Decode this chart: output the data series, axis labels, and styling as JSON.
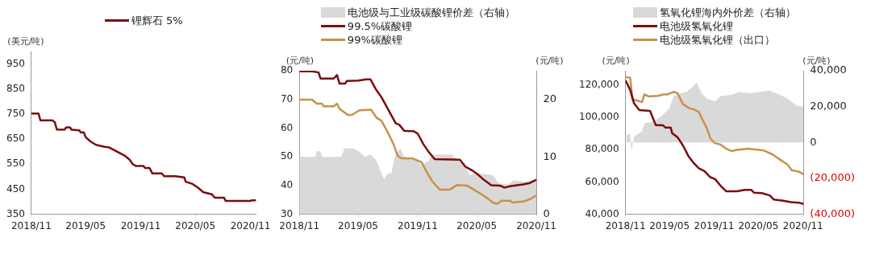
{
  "chart_data": [
    {
      "type": "line",
      "ylabel": "(美元/吨)",
      "legend": "top",
      "grid": false,
      "xlim": [
        "2018-11-01",
        "2020-11-20"
      ],
      "xticks": [
        {
          "value": "2018-11-01",
          "label": "2018/11"
        },
        {
          "value": "2019-05-01",
          "label": "2019/05"
        },
        {
          "value": "2019-11-01",
          "label": "2019/11"
        },
        {
          "value": "2020-05-01",
          "label": "2020/05"
        },
        {
          "value": "2020-11-01",
          "label": "2020/11"
        }
      ],
      "ylim": [
        350,
        1000
      ],
      "yticks": [
        350,
        450,
        550,
        650,
        750,
        850,
        950
      ],
      "series": [
        {
          "name": "锂辉石 5%",
          "color": "#7b0c0c",
          "x": [
            "2018-11-01",
            "2018-11-25",
            "2018-12-01",
            "2019-01-10",
            "2019-01-18",
            "2019-01-25",
            "2019-02-20",
            "2019-02-25",
            "2019-03-10",
            "2019-03-15",
            "2019-04-10",
            "2019-04-15",
            "2019-04-25",
            "2019-05-01",
            "2019-05-18",
            "2019-06-05",
            "2019-07-01",
            "2019-07-18",
            "2019-08-01",
            "2019-08-20",
            "2019-09-07",
            "2019-09-25",
            "2019-10-05",
            "2019-10-15",
            "2019-11-10",
            "2019-11-15",
            "2019-11-30",
            "2019-12-10",
            "2020-01-10",
            "2020-01-18",
            "2020-02-25",
            "2020-03-25",
            "2020-03-30",
            "2020-04-20",
            "2020-05-10",
            "2020-05-28",
            "2020-06-25",
            "2020-07-05",
            "2020-08-05",
            "2020-08-10",
            "2020-11-01",
            "2020-11-04",
            "2020-11-20"
          ],
          "values": [
            752,
            752,
            725,
            725,
            718,
            688,
            688,
            697,
            697,
            688,
            685,
            677,
            677,
            658,
            640,
            627,
            620,
            617,
            608,
            596,
            585,
            568,
            550,
            543,
            543,
            535,
            535,
            513,
            513,
            502,
            502,
            497,
            480,
            472,
            456,
            438,
            430,
            416,
            416,
            403,
            403,
            406,
            406
          ]
        }
      ]
    },
    {
      "type": "line",
      "ylabel": "(元/吨)",
      "y2label": "(元/吨)",
      "legend": "top",
      "grid": false,
      "xlim": [
        "2018-11-01",
        "2020-11-02"
      ],
      "xticks": [
        {
          "value": "2018-11-01",
          "label": "2018/11"
        },
        {
          "value": "2019-05-01",
          "label": "2019/05"
        },
        {
          "value": "2019-11-01",
          "label": "2019/11"
        },
        {
          "value": "2020-05-01",
          "label": "2020/05"
        },
        {
          "value": "2020-11-01",
          "label": "2020/11"
        }
      ],
      "ylim": [
        30,
        80
      ],
      "yticks": [
        30,
        40,
        50,
        60,
        70,
        80
      ],
      "y2lim": [
        0,
        25
      ],
      "y2ticks": [
        0,
        10,
        20
      ],
      "series": [
        {
          "name": "电池级与工业级碳酸锂价差（右轴）",
          "type": "area",
          "axis": "y2",
          "color": "#d9d9d9",
          "x": [
            "2018-11-01",
            "2018-12-20",
            "2018-12-25",
            "2019-01-05",
            "2019-01-10",
            "2019-03-10",
            "2019-03-20",
            "2019-04-15",
            "2019-05-05",
            "2019-05-22",
            "2019-06-08",
            "2019-06-25",
            "2019-07-12",
            "2019-07-20",
            "2019-07-30",
            "2019-08-12",
            "2019-08-22",
            "2019-09-08",
            "2019-09-20",
            "2019-10-25",
            "2019-11-12",
            "2019-12-05",
            "2019-12-14",
            "2020-02-14",
            "2020-03-05",
            "2020-03-22",
            "2020-04-10",
            "2020-04-28",
            "2020-05-24",
            "2020-06-20",
            "2020-07-08",
            "2020-08-05",
            "2020-08-22",
            "2020-09-26",
            "2020-10-18",
            "2020-11-01"
          ],
          "values": [
            10,
            10,
            11,
            11,
            10,
            10,
            11.5,
            11.5,
            10.9,
            10,
            10.4,
            9.5,
            7.2,
            6.1,
            7,
            7.2,
            10,
            11.5,
            10,
            9.7,
            8.6,
            9.3,
            10.4,
            10.4,
            9.3,
            8.6,
            6.8,
            7.2,
            7,
            6.8,
            5.4,
            5.2,
            5.9,
            5.7,
            5.9,
            5.7
          ]
        },
        {
          "name": "99.5%碳酸锂",
          "color": "#7b0c0c",
          "x": [
            "2018-11-01",
            "2018-12-10",
            "2018-12-30",
            "2019-01-05",
            "2019-02-15",
            "2019-02-25",
            "2019-03-05",
            "2019-03-22",
            "2019-03-27",
            "2019-05-01",
            "2019-05-27",
            "2019-06-08",
            "2019-06-25",
            "2019-07-12",
            "2019-07-30",
            "2019-08-25",
            "2019-09-05",
            "2019-09-20",
            "2019-10-20",
            "2019-11-01",
            "2019-11-18",
            "2019-12-05",
            "2019-12-23",
            "2020-03-10",
            "2020-03-28",
            "2020-04-15",
            "2020-05-02",
            "2020-05-20",
            "2020-06-15",
            "2020-07-12",
            "2020-07-25",
            "2020-08-15",
            "2020-09-20",
            "2020-10-12",
            "2020-11-01"
          ],
          "values": [
            79.8,
            79.8,
            79.4,
            77.3,
            77.3,
            78.5,
            75.5,
            75.5,
            76.4,
            76.6,
            77,
            77,
            73.5,
            70.8,
            67.1,
            61.7,
            61.2,
            59.1,
            58.9,
            58.1,
            54.5,
            51.7,
            49.2,
            49,
            46.5,
            45.4,
            44.1,
            42.3,
            40.1,
            40,
            39.3,
            39.8,
            40.4,
            40.9,
            42
          ]
        },
        {
          "name": "99%碳酸锂",
          "color": "#c8914a",
          "x": [
            "2018-11-01",
            "2018-12-10",
            "2018-12-25",
            "2019-01-10",
            "2019-01-15",
            "2019-02-15",
            "2019-02-25",
            "2019-03-05",
            "2019-03-22",
            "2019-03-30",
            "2019-04-12",
            "2019-05-05",
            "2019-06-10",
            "2019-06-28",
            "2019-07-12",
            "2019-07-30",
            "2019-08-18",
            "2019-08-31",
            "2019-09-12",
            "2019-10-15",
            "2019-11-13",
            "2019-11-30",
            "2019-12-17",
            "2020-01-08",
            "2020-02-08",
            "2020-03-02",
            "2020-04-01",
            "2020-04-28",
            "2020-05-24",
            "2020-06-20",
            "2020-07-03",
            "2020-07-16",
            "2020-08-12",
            "2020-08-20",
            "2020-09-24",
            "2020-10-15",
            "2020-11-01"
          ],
          "values": [
            69.9,
            69.9,
            68.5,
            68.5,
            67.6,
            67.6,
            68.5,
            66.7,
            65.3,
            64.6,
            64.6,
            66.2,
            66.4,
            63.5,
            62.6,
            58.9,
            54.5,
            50.4,
            49.5,
            49.5,
            48.1,
            44.5,
            41.3,
            38.6,
            38.6,
            40.2,
            40,
            38.2,
            36.4,
            34.1,
            33.6,
            34.7,
            34.7,
            34.1,
            34.5,
            35.4,
            36.6
          ]
        }
      ]
    },
    {
      "type": "line",
      "ylabel": "(元/吨)",
      "y2label": "(元/吨)",
      "legend": "top",
      "grid": false,
      "xlim": [
        "2018-11-01",
        "2020-11-03"
      ],
      "xticks": [
        {
          "value": "2018-11-01",
          "label": "2018/11"
        },
        {
          "value": "2019-05-01",
          "label": "2019/05"
        },
        {
          "value": "2019-11-01",
          "label": "2019/11"
        },
        {
          "value": "2020-05-01",
          "label": "2020/05"
        },
        {
          "value": "2020-11-01",
          "label": "2020/11"
        }
      ],
      "ylim": [
        40000,
        129000
      ],
      "yticks": [
        {
          "value": 40000,
          "label": "40,000"
        },
        {
          "value": 60000,
          "label": "60,000"
        },
        {
          "value": 80000,
          "label": "80,000"
        },
        {
          "value": 100000,
          "label": "100,000"
        },
        {
          "value": 120000,
          "label": "120,000"
        }
      ],
      "y2lim": [
        -40000,
        40000
      ],
      "y2ticks": [
        {
          "value": -40000,
          "label": "(40,000)"
        },
        {
          "value": -20000,
          "label": "(20,000)"
        },
        0,
        {
          "value": 20000,
          "label": "20,000"
        },
        {
          "value": 40000,
          "label": "40,000"
        }
      ],
      "series": [
        {
          "name": "氢氧化锂海内外价差（右轴）",
          "type": "area",
          "axis": "y2",
          "color": "#d9d9d9",
          "x": [
            "2018-11-05",
            "2018-11-20",
            "2018-11-25",
            "2018-12-06",
            "2019-01-08",
            "2019-01-18",
            "2019-02-22",
            "2019-03-28",
            "2019-05-01",
            "2019-05-18",
            "2019-06-15",
            "2019-07-08",
            "2019-07-30",
            "2019-08-20",
            "2019-09-11",
            "2019-10-02",
            "2019-11-05",
            "2019-11-28",
            "2020-01-12",
            "2020-02-12",
            "2020-03-28",
            "2020-05-02",
            "2020-06-17",
            "2020-07-28",
            "2020-08-30",
            "2020-10-04",
            "2020-11-02"
          ],
          "values": [
            4100,
            4800,
            -5000,
            3300,
            6300,
            10800,
            11600,
            14600,
            19100,
            25900,
            27400,
            28100,
            30400,
            33400,
            27400,
            24400,
            22900,
            25900,
            26600,
            28100,
            27400,
            28100,
            28900,
            26600,
            24400,
            20600,
            19800
          ]
        },
        {
          "name": "电池级氢氧化锂",
          "color": "#7b0c0c",
          "x": [
            "2018-11-01",
            "2018-11-20",
            "2018-12-06",
            "2018-12-28",
            "2019-02-10",
            "2019-02-22",
            "2019-03-05",
            "2019-04-03",
            "2019-04-15",
            "2019-05-06",
            "2019-05-12",
            "2019-06-03",
            "2019-06-25",
            "2019-07-18",
            "2019-08-08",
            "2019-08-30",
            "2019-09-22",
            "2019-10-15",
            "2019-11-05",
            "2019-11-28",
            "2019-12-20",
            "2020-02-02",
            "2020-03-06",
            "2020-04-02",
            "2020-04-13",
            "2020-05-15",
            "2020-06-17",
            "2020-07-03",
            "2020-08-11",
            "2020-09-13",
            "2020-10-15",
            "2020-11-03"
          ],
          "values": [
            123000,
            117100,
            108800,
            104600,
            104100,
            99600,
            95300,
            95300,
            93700,
            93700,
            90300,
            87800,
            82800,
            76100,
            71900,
            68500,
            66800,
            63100,
            61800,
            57600,
            54300,
            54300,
            55100,
            55100,
            53400,
            53100,
            51700,
            49200,
            48400,
            47500,
            47200,
            46400
          ]
        },
        {
          "name": "电池级氢氧化锂（出口）",
          "color": "#c8914a",
          "x": [
            "2018-11-01",
            "2018-11-20",
            "2018-11-30",
            "2019-01-08",
            "2019-01-18",
            "2019-02-04",
            "2019-03-15",
            "2019-04-06",
            "2019-04-22",
            "2019-05-18",
            "2019-06-03",
            "2019-06-25",
            "2019-07-20",
            "2019-08-08",
            "2019-08-30",
            "2019-09-15",
            "2019-10-02",
            "2019-10-18",
            "2019-11-05",
            "2019-11-28",
            "2019-12-20",
            "2020-01-12",
            "2020-02-02",
            "2020-03-18",
            "2020-04-20",
            "2020-05-22",
            "2020-06-25",
            "2020-07-28",
            "2020-08-30",
            "2020-09-15",
            "2020-10-13",
            "2020-11-03"
          ],
          "values": [
            125000,
            124700,
            111300,
            109600,
            114300,
            113100,
            113400,
            114300,
            114300,
            115900,
            115100,
            108400,
            105900,
            105100,
            103400,
            98300,
            93300,
            86600,
            84100,
            83200,
            80700,
            79100,
            79900,
            80700,
            80200,
            79600,
            77400,
            74000,
            70700,
            67300,
            66500,
            64800
          ]
        }
      ]
    }
  ]
}
